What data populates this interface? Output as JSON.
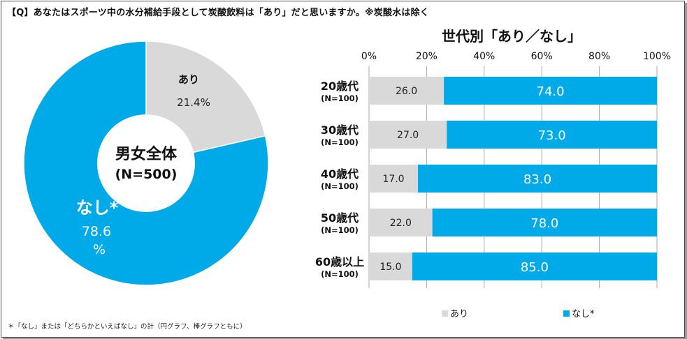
{
  "question": "【Q】あなたはスポーツ中の水分補給手段として炭酸飲料は「あり」だと思いますか。※炭酸水は除く",
  "footnote": "＊「なし」または「どちらかといえばなし」の計（円グラフ、棒グラフともに）",
  "colors": {
    "aori": "#d9d9d9",
    "nashi": "#00a9e8",
    "grid": "#aaaaaa"
  },
  "chart_data": [
    {
      "type": "pie",
      "center_title": "男女全体",
      "center_sub": "(N=500)",
      "slices": [
        {
          "label": "あり",
          "value": 21.4,
          "display": "21.4%"
        },
        {
          "label": "なし*",
          "value": 78.6,
          "display_line1": "78.6",
          "display_line2": "%"
        }
      ]
    },
    {
      "type": "bar",
      "stacked": true,
      "orientation": "horizontal",
      "title": "世代別「あり／なし」",
      "categories": [
        "20歳代",
        "30歳代",
        "40歳代",
        "50歳代",
        "60歳以上"
      ],
      "category_n": [
        "(N=100)",
        "(N=100)",
        "(N=100)",
        "(N=100)",
        "(N=100)"
      ],
      "series": [
        {
          "name": "あり",
          "values": [
            26.0,
            27.0,
            17.0,
            22.0,
            15.0
          ]
        },
        {
          "name": "なし*",
          "values": [
            74.0,
            73.0,
            83.0,
            78.0,
            85.0
          ]
        }
      ],
      "xlim": [
        0,
        100
      ],
      "xticks": [
        "0%",
        "20%",
        "40%",
        "60%",
        "80%",
        "100%"
      ],
      "legend_position": "bottom",
      "grid": true
    }
  ]
}
